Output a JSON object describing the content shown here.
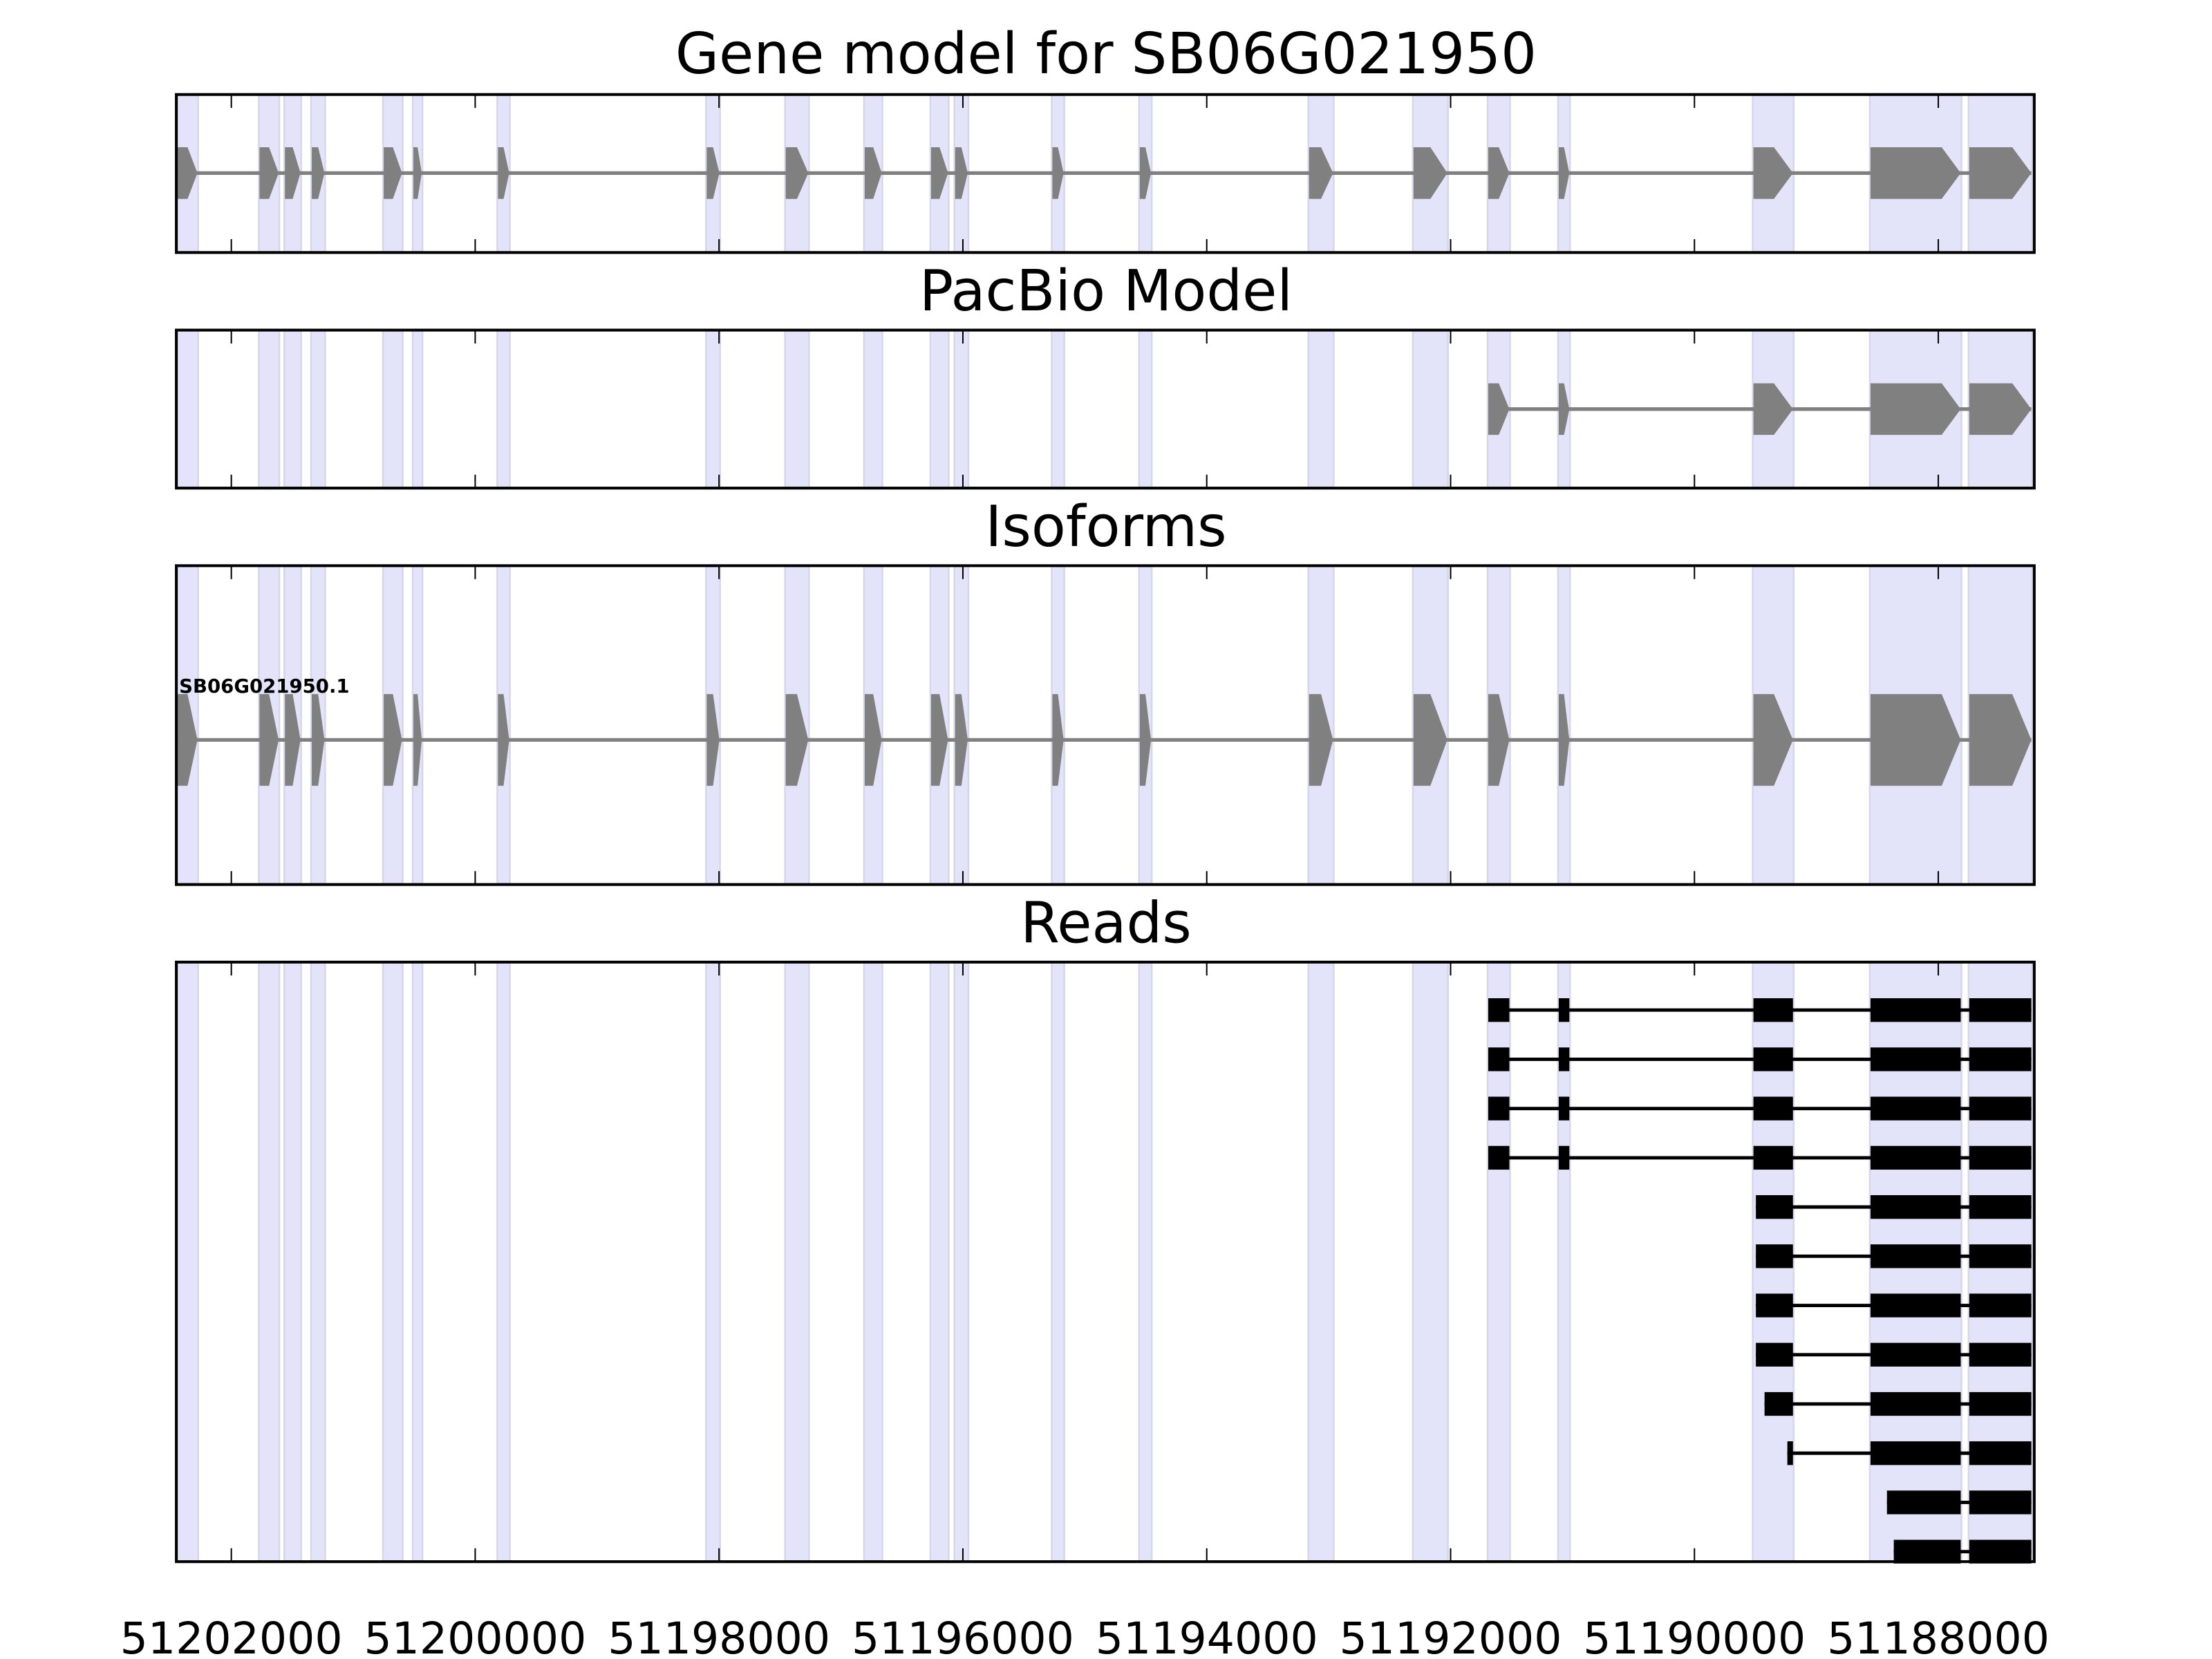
{
  "chart_data": {
    "type": "gene-track",
    "xlim": [
      51202451,
      51187213
    ],
    "x_ticks": [
      51202000,
      51200000,
      51198000,
      51196000,
      51194000,
      51192000,
      51190000,
      51188000
    ],
    "x_tick_labels": [
      "51202000",
      "51200000",
      "51198000",
      "51196000",
      "51194000",
      "51192000",
      "51190000",
      "51188000"
    ],
    "strand": "-",
    "colors": {
      "model": "#808080",
      "reads": "#000000",
      "band": "#e3e3fa",
      "band_edge": "#d6d6ea"
    },
    "highlight_bands": [
      [
        51202278,
        51202440
      ],
      [
        51201612,
        51201769
      ],
      [
        51201433,
        51201560
      ],
      [
        51201236,
        51201340
      ],
      [
        51200600,
        51200750
      ],
      [
        51200438,
        51200507
      ],
      [
        51199721,
        51199813
      ],
      [
        51197997,
        51198101
      ],
      [
        51197268,
        51197453
      ],
      [
        51196666,
        51196805
      ],
      [
        51196122,
        51196261
      ],
      [
        51195960,
        51196064
      ],
      [
        51195174,
        51195266
      ],
      [
        51194457,
        51194549
      ],
      [
        51192964,
        51193161
      ],
      [
        51192027,
        51192304
      ],
      [
        51191518,
        51191691
      ],
      [
        51191026,
        51191113
      ],
      [
        51189192,
        51189516
      ],
      [
        51187816,
        51188556
      ],
      [
        51187237,
        51187746
      ]
    ],
    "panels": [
      {
        "title": "Gene model for SB06G021950",
        "kind": "model",
        "exons": [
          [
            51202278,
            51202440
          ],
          [
            51201612,
            51201769
          ],
          [
            51201433,
            51201560
          ],
          [
            51201236,
            51201340
          ],
          [
            51200600,
            51200750
          ],
          [
            51200438,
            51200507
          ],
          [
            51199721,
            51199813
          ],
          [
            51197997,
            51198101
          ],
          [
            51197268,
            51197453
          ],
          [
            51196666,
            51196805
          ],
          [
            51196122,
            51196261
          ],
          [
            51195960,
            51196064
          ],
          [
            51195174,
            51195266
          ],
          [
            51194457,
            51194549
          ],
          [
            51192964,
            51193161
          ],
          [
            51192027,
            51192304
          ],
          [
            51191518,
            51191691
          ],
          [
            51191026,
            51191113
          ],
          [
            51189192,
            51189516
          ],
          [
            51187816,
            51188556
          ],
          [
            51187237,
            51187746
          ]
        ]
      },
      {
        "title": "PacBio Model",
        "kind": "model",
        "exons": [
          [
            51191518,
            51191691
          ],
          [
            51191026,
            51191113
          ],
          [
            51189192,
            51189516
          ],
          [
            51187816,
            51188556
          ],
          [
            51187237,
            51187746
          ]
        ]
      },
      {
        "title": "Isoforms",
        "kind": "model",
        "isoform_label": "SB06G021950.1",
        "exons": [
          [
            51202278,
            51202440
          ],
          [
            51201612,
            51201769
          ],
          [
            51201433,
            51201560
          ],
          [
            51201236,
            51201340
          ],
          [
            51200600,
            51200750
          ],
          [
            51200438,
            51200507
          ],
          [
            51199721,
            51199813
          ],
          [
            51197997,
            51198101
          ],
          [
            51197268,
            51197453
          ],
          [
            51196666,
            51196805
          ],
          [
            51196122,
            51196261
          ],
          [
            51195960,
            51196064
          ],
          [
            51195174,
            51195266
          ],
          [
            51194457,
            51194549
          ],
          [
            51192964,
            51193161
          ],
          [
            51192027,
            51192304
          ],
          [
            51191518,
            51191691
          ],
          [
            51191026,
            51191113
          ],
          [
            51189192,
            51189516
          ],
          [
            51187816,
            51188556
          ],
          [
            51187237,
            51187746
          ]
        ]
      },
      {
        "title": "Reads",
        "kind": "reads",
        "reads": [
          [
            [
              51191518,
              51191691
            ],
            [
              51191026,
              51191113
            ],
            [
              51189192,
              51189516
            ],
            [
              51187816,
              51188556
            ],
            [
              51187237,
              51187746
            ]
          ],
          [
            [
              51191518,
              51191691
            ],
            [
              51191026,
              51191113
            ],
            [
              51189192,
              51189516
            ],
            [
              51187816,
              51188556
            ],
            [
              51187237,
              51187746
            ]
          ],
          [
            [
              51191518,
              51191691
            ],
            [
              51191026,
              51191113
            ],
            [
              51189192,
              51189516
            ],
            [
              51187816,
              51188556
            ],
            [
              51187237,
              51187746
            ]
          ],
          [
            [
              51191518,
              51191691
            ],
            [
              51191026,
              51191113
            ],
            [
              51189192,
              51189516
            ],
            [
              51187816,
              51188556
            ],
            [
              51187237,
              51187746
            ]
          ],
          [
            [
              51189192,
              51189496
            ],
            [
              51187816,
              51188556
            ],
            [
              51187237,
              51187746
            ]
          ],
          [
            [
              51189192,
              51189496
            ],
            [
              51187816,
              51188556
            ],
            [
              51187237,
              51187746
            ]
          ],
          [
            [
              51189192,
              51189496
            ],
            [
              51187816,
              51188556
            ],
            [
              51187237,
              51187746
            ]
          ],
          [
            [
              51189192,
              51189496
            ],
            [
              51187816,
              51188556
            ],
            [
              51187237,
              51187746
            ]
          ],
          [
            [
              51189192,
              51189425
            ],
            [
              51187816,
              51188556
            ],
            [
              51187237,
              51187746
            ]
          ],
          [
            [
              51189192,
              51189238
            ],
            [
              51187816,
              51188556
            ],
            [
              51187237,
              51187746
            ]
          ],
          [
            [
              51187816,
              51188421
            ],
            [
              51187237,
              51187746
            ]
          ],
          [
            [
              51187816,
              51188365
            ],
            [
              51187237,
              51187746
            ]
          ]
        ]
      }
    ]
  }
}
